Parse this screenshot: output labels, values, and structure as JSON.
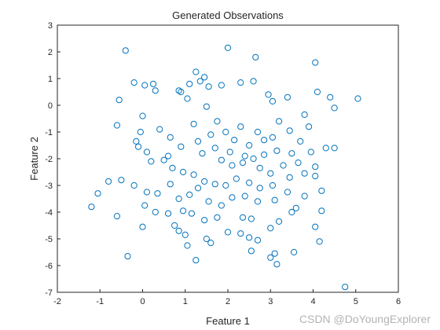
{
  "chart_data": {
    "type": "scatter",
    "title": "Generated Observations",
    "xlabel": "Feature 1",
    "ylabel": "Feature 2",
    "xlim": [
      -2,
      6
    ],
    "ylim": [
      -7,
      3
    ],
    "xticks": [
      -2,
      -1,
      0,
      1,
      2,
      3,
      4,
      5,
      6
    ],
    "yticks": [
      3,
      2,
      1,
      0,
      -1,
      -2,
      -3,
      -4,
      -5,
      -6,
      -7
    ],
    "grid": false,
    "legend": "none",
    "marker": "open-circle",
    "color": "#0072BD",
    "points": [
      [
        -0.4,
        2.05
      ],
      [
        2.0,
        2.15
      ],
      [
        2.65,
        1.8
      ],
      [
        4.05,
        1.6
      ],
      [
        5.05,
        0.25
      ],
      [
        4.4,
        0.3
      ],
      [
        4.1,
        0.5
      ],
      [
        3.8,
        -0.35
      ],
      [
        4.5,
        -0.1
      ],
      [
        -0.55,
        0.2
      ],
      [
        -0.6,
        -0.75
      ],
      [
        -0.2,
        0.85
      ],
      [
        0.05,
        0.75
      ],
      [
        0.3,
        0.55
      ],
      [
        0.25,
        0.8
      ],
      [
        0.85,
        0.55
      ],
      [
        0.9,
        0.5
      ],
      [
        1.1,
        0.8
      ],
      [
        1.25,
        1.25
      ],
      [
        1.35,
        0.9
      ],
      [
        1.45,
        1.05
      ],
      [
        1.55,
        0.7
      ],
      [
        1.85,
        0.75
      ],
      [
        2.3,
        0.85
      ],
      [
        2.6,
        0.9
      ],
      [
        2.95,
        0.4
      ],
      [
        3.05,
        0.15
      ],
      [
        3.4,
        0.3
      ],
      [
        1.05,
        0.25
      ],
      [
        1.5,
        -0.05
      ],
      [
        0.0,
        -0.4
      ],
      [
        -0.05,
        -1.0
      ],
      [
        -0.15,
        -1.35
      ],
      [
        -0.1,
        -1.55
      ],
      [
        0.1,
        -1.75
      ],
      [
        0.4,
        -0.9
      ],
      [
        0.65,
        -1.2
      ],
      [
        0.6,
        -1.9
      ],
      [
        0.9,
        -1.55
      ],
      [
        1.2,
        -0.7
      ],
      [
        1.3,
        -1.35
      ],
      [
        1.6,
        -1.1
      ],
      [
        1.75,
        -0.6
      ],
      [
        1.95,
        -1.0
      ],
      [
        2.15,
        -1.3
      ],
      [
        2.3,
        -0.8
      ],
      [
        2.5,
        -1.5
      ],
      [
        2.7,
        -1.0
      ],
      [
        2.85,
        -1.3
      ],
      [
        3.05,
        -1.2
      ],
      [
        3.2,
        -0.6
      ],
      [
        3.45,
        -0.95
      ],
      [
        3.7,
        -1.35
      ],
      [
        3.95,
        -1.75
      ],
      [
        4.3,
        -1.6
      ],
      [
        4.5,
        -1.6
      ],
      [
        3.9,
        -0.8
      ],
      [
        1.4,
        -1.8
      ],
      [
        1.7,
        -1.6
      ],
      [
        2.05,
        -1.75
      ],
      [
        2.4,
        -1.9
      ],
      [
        2.6,
        -2.0
      ],
      [
        2.85,
        -1.85
      ],
      [
        3.15,
        -1.7
      ],
      [
        3.5,
        -1.8
      ],
      [
        1.85,
        -2.05
      ],
      [
        2.1,
        -2.25
      ],
      [
        2.35,
        -2.15
      ],
      [
        2.75,
        -2.35
      ],
      [
        3.0,
        -2.55
      ],
      [
        3.3,
        -2.25
      ],
      [
        3.65,
        -2.15
      ],
      [
        4.05,
        -2.3
      ],
      [
        0.2,
        -2.1
      ],
      [
        0.5,
        -2.05
      ],
      [
        0.7,
        -2.35
      ],
      [
        0.95,
        -2.5
      ],
      [
        1.2,
        -2.6
      ],
      [
        1.45,
        -2.85
      ],
      [
        1.7,
        -2.95
      ],
      [
        1.95,
        -3.0
      ],
      [
        2.2,
        -2.75
      ],
      [
        2.5,
        -2.9
      ],
      [
        2.75,
        -3.1
      ],
      [
        3.05,
        -3.0
      ],
      [
        3.45,
        -2.7
      ],
      [
        3.8,
        -2.55
      ],
      [
        4.05,
        -2.65
      ],
      [
        4.2,
        -3.2
      ],
      [
        3.8,
        -3.4
      ],
      [
        -0.8,
        -2.85
      ],
      [
        -0.5,
        -2.8
      ],
      [
        -0.2,
        -3.0
      ],
      [
        0.1,
        -3.25
      ],
      [
        0.35,
        -3.3
      ],
      [
        0.65,
        -2.95
      ],
      [
        0.85,
        -3.5
      ],
      [
        1.1,
        -3.35
      ],
      [
        1.3,
        -3.1
      ],
      [
        1.55,
        -3.6
      ],
      [
        1.85,
        -3.75
      ],
      [
        2.1,
        -3.45
      ],
      [
        2.4,
        -3.4
      ],
      [
        2.7,
        -3.6
      ],
      [
        3.1,
        -3.55
      ],
      [
        3.4,
        -3.25
      ],
      [
        3.6,
        -3.85
      ],
      [
        4.2,
        -3.95
      ],
      [
        -1.2,
        -3.8
      ],
      [
        -1.05,
        -3.3
      ],
      [
        -0.6,
        -4.15
      ],
      [
        0.05,
        -3.75
      ],
      [
        0.3,
        -4.0
      ],
      [
        0.6,
        -4.05
      ],
      [
        0.95,
        -3.95
      ],
      [
        1.15,
        -4.05
      ],
      [
        1.45,
        -4.3
      ],
      [
        1.75,
        -4.2
      ],
      [
        2.35,
        -4.2
      ],
      [
        2.55,
        -4.25
      ],
      [
        3.2,
        -4.35
      ],
      [
        3.5,
        -4.0
      ],
      [
        0.75,
        -4.5
      ],
      [
        0.85,
        -4.7
      ],
      [
        1.0,
        -4.85
      ],
      [
        1.5,
        -5.0
      ],
      [
        1.6,
        -5.15
      ],
      [
        2.0,
        -4.75
      ],
      [
        2.3,
        -4.8
      ],
      [
        2.5,
        -4.95
      ],
      [
        2.7,
        -5.05
      ],
      [
        3.0,
        -4.6
      ],
      [
        4.05,
        -4.55
      ],
      [
        4.15,
        -5.1
      ],
      [
        0.0,
        -4.55
      ],
      [
        1.05,
        -5.25
      ],
      [
        1.25,
        -5.8
      ],
      [
        2.55,
        -5.45
      ],
      [
        3.0,
        -5.7
      ],
      [
        3.15,
        -5.95
      ],
      [
        3.1,
        -5.55
      ],
      [
        -0.35,
        -5.65
      ],
      [
        4.75,
        -6.8
      ],
      [
        3.55,
        -5.5
      ]
    ]
  },
  "watermark": "CSDN @DoYoungExplorer"
}
